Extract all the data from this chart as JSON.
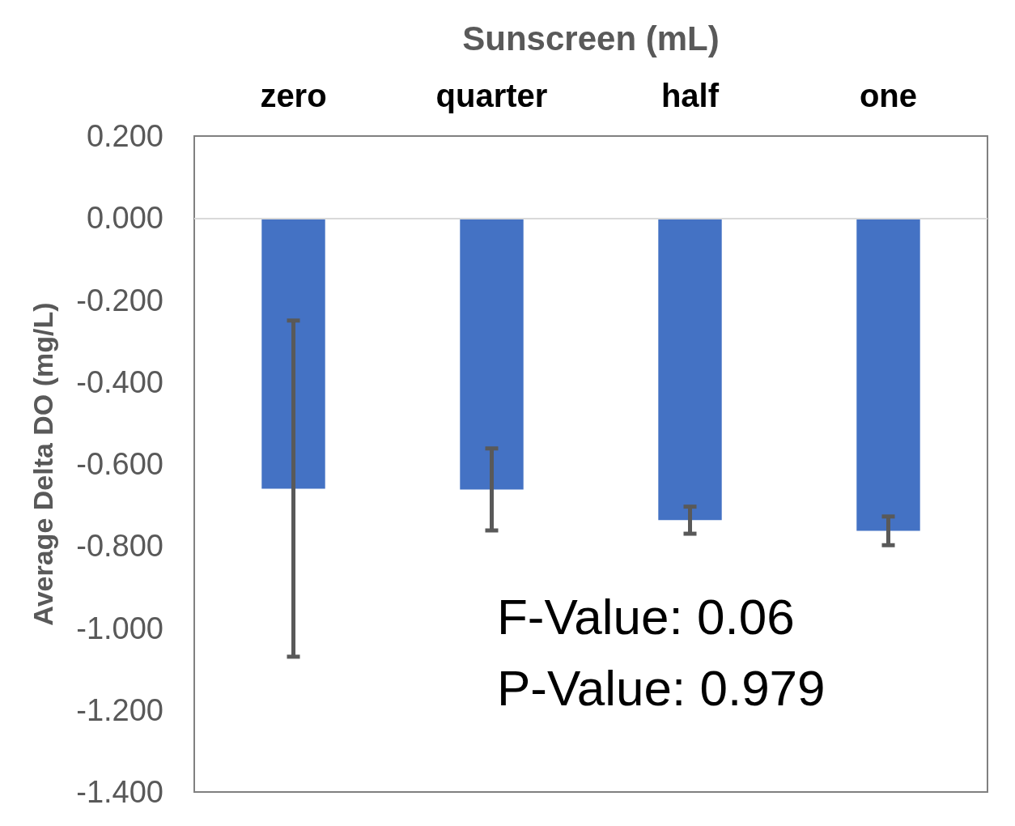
{
  "chart_data": {
    "type": "bar",
    "xlabel": "Sunscreen (mL)",
    "ylabel": "Average Delta DO (mg/L)",
    "categories": [
      "zero",
      "quarter",
      "half",
      "one"
    ],
    "values": [
      -0.66,
      -0.662,
      -0.737,
      -0.763
    ],
    "errors": [
      0.41,
      0.1,
      0.033,
      0.035
    ],
    "color": "#4472c4",
    "ylim": [
      -1.4,
      0.2
    ],
    "yticks": [
      {
        "value": -1.4,
        "label": "-1.400"
      },
      {
        "value": -1.2,
        "label": "-1.200"
      },
      {
        "value": -1.0,
        "label": "-1.000"
      },
      {
        "value": -0.8,
        "label": "-0.800"
      },
      {
        "value": -0.6,
        "label": "-0.600"
      },
      {
        "value": -0.4,
        "label": "-0.400"
      },
      {
        "value": -0.2,
        "label": "-0.200"
      },
      {
        "value": 0,
        "label": "0.000"
      },
      {
        "value": 0.2,
        "label": "0.200"
      }
    ],
    "ref_lines": [
      {
        "axis": "y",
        "value": 0,
        "color": "#d9d9d9"
      }
    ],
    "annotations": [
      "F-Value: 0.06",
      "P-Value: 0.979"
    ]
  }
}
